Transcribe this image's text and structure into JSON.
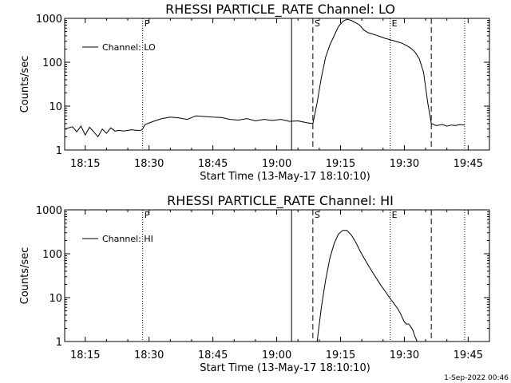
{
  "footer_date": "1-Sep-2022 00:46",
  "chart_data": [
    {
      "type": "line",
      "title": "RHESSI PARTICLE_RATE Channel: LO",
      "xlabel": "Start Time (13-May-17 18:10:10)",
      "ylabel": "Counts/sec",
      "yscale": "log",
      "ylim": [
        1,
        1000
      ],
      "xlim": [
        "18:10:10",
        "19:50:00"
      ],
      "x_ticks": [
        "18:15",
        "18:30",
        "18:45",
        "19:00",
        "19:15",
        "19:30",
        "19:45"
      ],
      "y_ticks": [
        "1",
        "10",
        "100",
        "1000"
      ],
      "legend": {
        "entries": [
          "Channel: LO"
        ],
        "position": "upper-left"
      },
      "vlines": [
        {
          "time": "18:28:30",
          "style": "dotted",
          "label": "P"
        },
        {
          "time": "19:03:30",
          "style": "solid",
          "label": ""
        },
        {
          "time": "19:08:30",
          "style": "dashed",
          "label": "S"
        },
        {
          "time": "19:26:40",
          "style": "dotted",
          "label": "E"
        },
        {
          "time": "19:36:20",
          "style": "dashed",
          "label": ""
        },
        {
          "time": "19:44:10",
          "style": "dotted",
          "label": ""
        }
      ],
      "series": [
        {
          "name": "Channel: LO",
          "x": [
            "18:10:10",
            "18:12:00",
            "18:13:00",
            "18:14:00",
            "18:15:00",
            "18:16:00",
            "18:17:00",
            "18:18:00",
            "18:19:00",
            "18:20:00",
            "18:21:00",
            "18:22:00",
            "18:23:00",
            "18:24:00",
            "18:25:00",
            "18:26:00",
            "18:27:00",
            "18:28:00",
            "18:28:30",
            "18:29:00",
            "18:31:00",
            "18:33:00",
            "18:35:00",
            "18:37:00",
            "18:39:00",
            "18:41:00",
            "18:43:00",
            "18:45:00",
            "18:47:00",
            "18:49:00",
            "18:51:00",
            "18:53:00",
            "18:55:00",
            "18:57:00",
            "18:59:00",
            "19:01:00",
            "19:03:00",
            "19:05:00",
            "19:07:00",
            "19:08:30",
            "19:09:30",
            "19:10:30",
            "19:11:30",
            "19:12:30",
            "19:13:30",
            "19:14:30",
            "19:15:30",
            "19:16:30",
            "19:17:30",
            "19:18:30",
            "19:19:30",
            "19:20:30",
            "19:21:30",
            "19:22:30",
            "19:23:30",
            "19:24:30",
            "19:25:30",
            "19:26:30",
            "19:27:30",
            "19:28:30",
            "19:29:30",
            "19:30:30",
            "19:31:30",
            "19:32:30",
            "19:33:30",
            "19:34:30",
            "19:35:30",
            "19:36:20",
            "19:37:30",
            "19:39:00",
            "19:40:00",
            "19:41:00",
            "19:42:00",
            "19:43:00",
            "19:44:10"
          ],
          "values": [
            3.0,
            3.4,
            2.6,
            3.5,
            2.2,
            3.3,
            2.6,
            2.0,
            3.0,
            2.4,
            3.2,
            2.7,
            2.8,
            2.7,
            2.8,
            2.9,
            2.8,
            2.8,
            3.0,
            3.8,
            4.5,
            5.2,
            5.6,
            5.4,
            5.0,
            6.0,
            5.8,
            5.6,
            5.5,
            5.0,
            4.8,
            5.2,
            4.6,
            5.0,
            4.7,
            5.0,
            4.5,
            4.6,
            4.2,
            4.0,
            12,
            45,
            130,
            250,
            400,
            650,
            850,
            950,
            900,
            800,
            700,
            540,
            470,
            440,
            410,
            380,
            350,
            330,
            310,
            290,
            270,
            240,
            210,
            170,
            120,
            60,
            12,
            4.0,
            3.6,
            3.8,
            3.5,
            3.7,
            3.6,
            3.8,
            3.7
          ]
        }
      ]
    },
    {
      "type": "line",
      "title": "RHESSI PARTICLE_RATE Channel: HI",
      "xlabel": "Start Time (13-May-17 18:10:10)",
      "ylabel": "Counts/sec",
      "yscale": "log",
      "ylim": [
        1,
        1000
      ],
      "xlim": [
        "18:10:10",
        "19:50:00"
      ],
      "x_ticks": [
        "18:15",
        "18:30",
        "18:45",
        "19:00",
        "19:15",
        "19:30",
        "19:45"
      ],
      "y_ticks": [
        "1",
        "10",
        "100",
        "1000"
      ],
      "legend": {
        "entries": [
          "Channel: HI"
        ],
        "position": "upper-left"
      },
      "vlines": [
        {
          "time": "18:28:30",
          "style": "dotted",
          "label": "P"
        },
        {
          "time": "19:03:30",
          "style": "solid",
          "label": ""
        },
        {
          "time": "19:08:30",
          "style": "dashed",
          "label": "S"
        },
        {
          "time": "19:26:40",
          "style": "dotted",
          "label": "E"
        },
        {
          "time": "19:36:20",
          "style": "dashed",
          "label": ""
        },
        {
          "time": "19:44:10",
          "style": "dotted",
          "label": ""
        }
      ],
      "series": [
        {
          "name": "Channel: HI",
          "x": [
            "19:09:30",
            "19:10:30",
            "19:11:30",
            "19:12:30",
            "19:13:30",
            "19:14:30",
            "19:15:30",
            "19:16:30",
            "19:17:30",
            "19:18:30",
            "19:19:30",
            "19:20:30",
            "19:21:30",
            "19:22:30",
            "19:23:30",
            "19:24:30",
            "19:25:30",
            "19:26:30",
            "19:27:30",
            "19:28:30",
            "19:29:00",
            "19:29:30",
            "19:30:00",
            "19:30:30",
            "19:31:00",
            "19:31:30",
            "19:32:00",
            "19:32:30",
            "19:33:00"
          ],
          "values": [
            1.0,
            6,
            25,
            80,
            170,
            280,
            340,
            340,
            270,
            190,
            120,
            80,
            55,
            38,
            27,
            19,
            14,
            10,
            7.5,
            5.5,
            4.5,
            3.5,
            2.8,
            2.5,
            2.5,
            2.2,
            1.8,
            1.3,
            1.0
          ]
        }
      ]
    }
  ]
}
